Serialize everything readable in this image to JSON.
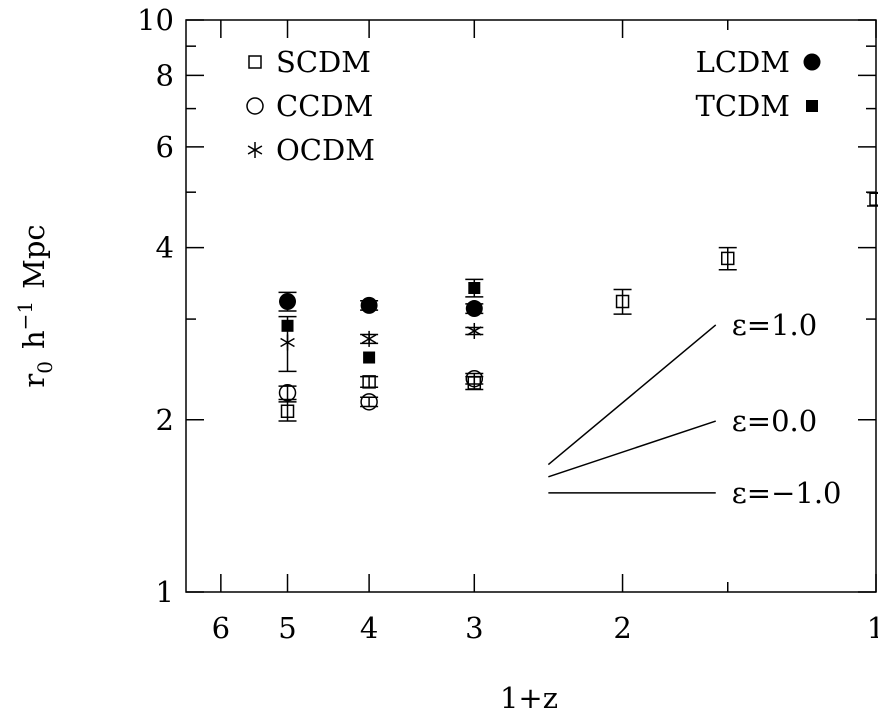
{
  "chart_data": {
    "type": "scatter",
    "title": "",
    "xlabel": "1+z",
    "ylabel": "r0 h−1 Mpc",
    "ylabel_parts": {
      "r": "r",
      "sub": "0",
      "h": "h",
      "sup": "−1",
      "unit": "Mpc"
    },
    "x_scale": "log",
    "y_scale": "log",
    "xlim": [
      6.6,
      1.0
    ],
    "ylim": [
      1,
      10
    ],
    "x_ticks": [
      6,
      5,
      4,
      3,
      2,
      1
    ],
    "x_tick_labels": [
      "6",
      "5",
      "4",
      "3",
      "2",
      "1"
    ],
    "y_ticks": [
      1,
      2,
      4,
      6,
      8,
      10
    ],
    "y_tick_labels": [
      "1",
      "2",
      "4",
      "6",
      "8",
      "10"
    ],
    "y_minor_ticks": [
      3,
      5,
      7,
      9
    ],
    "x_minor_ticks": [
      1.5
    ],
    "grid": false,
    "legend_left_placement": "top-left",
    "legend_right_placement": "top-right",
    "series": [
      {
        "name": "SCDM",
        "marker": "square-open",
        "points": [
          {
            "x": 5.0,
            "y": 2.07,
            "err": 0.08
          },
          {
            "x": 4.0,
            "y": 2.33,
            "err": 0.05
          },
          {
            "x": 3.0,
            "y": 2.32,
            "err": 0.06
          },
          {
            "x": 2.0,
            "y": 3.22,
            "err": 0.16
          },
          {
            "x": 1.5,
            "y": 3.83,
            "err": 0.17
          },
          {
            "x": 1.0,
            "y": 4.86,
            "err": 0.13
          }
        ]
      },
      {
        "name": "CCDM",
        "marker": "circle-open",
        "points": [
          {
            "x": 5.0,
            "y": 2.23,
            "err": 0.06
          },
          {
            "x": 4.0,
            "y": 2.15,
            "err": 0.04
          },
          {
            "x": 3.0,
            "y": 2.36,
            "err": 0.05
          }
        ]
      },
      {
        "name": "OCDM",
        "marker": "asterisk",
        "points": [
          {
            "x": 5.0,
            "y": 2.73,
            "err": 0.3
          },
          {
            "x": 4.0,
            "y": 2.77,
            "err": 0.05
          },
          {
            "x": 3.0,
            "y": 2.86,
            "err": 0.04
          }
        ]
      },
      {
        "name": "LCDM",
        "marker": "circle-filled",
        "points": [
          {
            "x": 5.0,
            "y": 3.22,
            "err": 0.12
          },
          {
            "x": 4.0,
            "y": 3.17,
            "err": 0.06
          },
          {
            "x": 3.0,
            "y": 3.13,
            "err": 0.06
          }
        ]
      },
      {
        "name": "TCDM",
        "marker": "square-filled",
        "points": [
          {
            "x": 5.0,
            "y": 2.92,
            "err": 0.0
          },
          {
            "x": 4.0,
            "y": 2.57,
            "err": 0.0
          },
          {
            "x": 3.0,
            "y": 3.4,
            "err": 0.12
          }
        ]
      }
    ],
    "legend_left": [
      "SCDM",
      "CCDM",
      "OCDM"
    ],
    "legend_right": [
      "LCDM",
      "TCDM"
    ],
    "reference_lines": [
      {
        "label": "ε=1.0",
        "x": [
          2.45,
          1.55
        ],
        "y": [
          1.67,
          2.93
        ]
      },
      {
        "label": "ε=0.0",
        "x": [
          2.45,
          1.55
        ],
        "y": [
          1.59,
          1.99
        ]
      },
      {
        "label": "ε=−1.0",
        "x": [
          2.45,
          1.55
        ],
        "y": [
          1.49,
          1.49
        ]
      }
    ]
  }
}
